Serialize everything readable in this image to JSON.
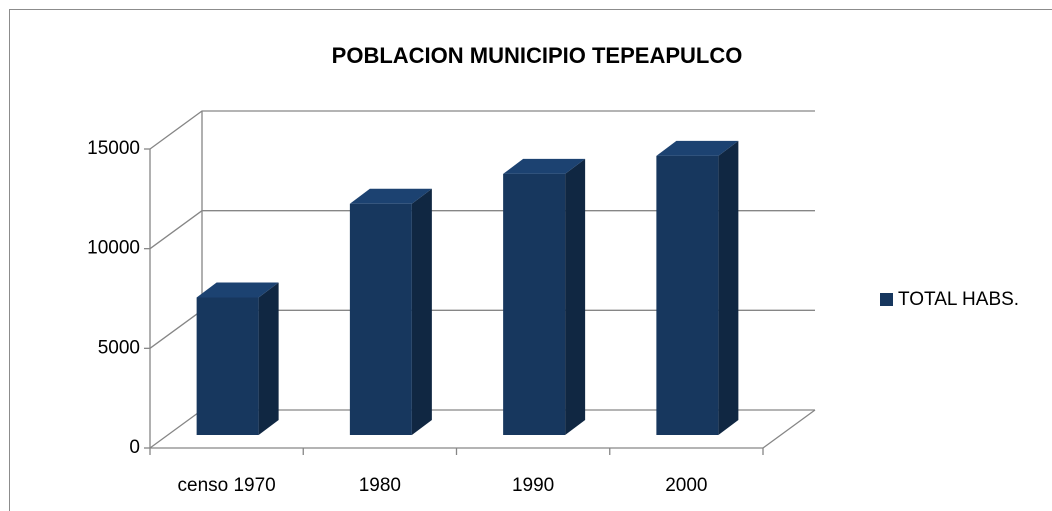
{
  "chart_data": {
    "type": "bar3d",
    "title": "POBLACION MUNICIPIO TEPEAPULCO",
    "categories": [
      "censo 1970",
      "1980",
      "1990",
      "2000"
    ],
    "series": [
      {
        "name": "TOTAL HABS.",
        "color": "#17375e",
        "values": [
          6900,
          11600,
          13100,
          14000
        ]
      }
    ],
    "ylim": [
      0,
      15000
    ],
    "yticks": [
      0,
      5000,
      10000,
      15000
    ],
    "grid": true,
    "legend": "right"
  }
}
